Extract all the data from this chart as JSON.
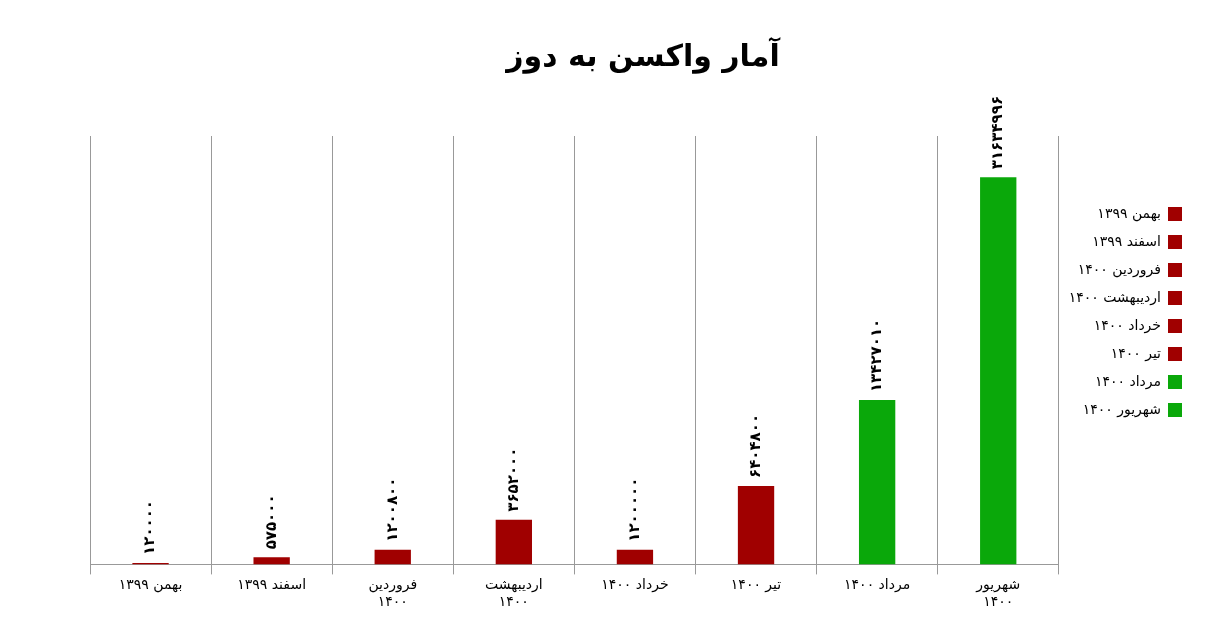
{
  "chart_data": {
    "type": "bar",
    "title": "آمار واکسن به دوز",
    "categories": [
      "بهمن ۱۳۹۹",
      "اسفند ۱۳۹۹",
      "فروردین ۱۴۰۰",
      "اردیبهشت ۱۴۰۰",
      "خرداد ۱۴۰۰",
      "تیر ۱۴۰۰",
      "مرداد ۱۴۰۰",
      "شهریور ۱۴۰۰"
    ],
    "series": [
      {
        "name": "بهمن ۱۳۹۹",
        "color": "#a00000",
        "values": [
          120000,
          null,
          null,
          null,
          null,
          null,
          null,
          null
        ],
        "value_labels": [
          "۱۲۰۰۰۰",
          null,
          null,
          null,
          null,
          null,
          null,
          null
        ]
      },
      {
        "name": "اسفند ۱۳۹۹",
        "color": "#a00000",
        "values": [
          null,
          575000,
          null,
          null,
          null,
          null,
          null,
          null
        ],
        "value_labels": [
          null,
          "۵۷۵۰۰۰",
          null,
          null,
          null,
          null,
          null,
          null
        ]
      },
      {
        "name": "فروردین ۱۴۰۰",
        "color": "#a00000",
        "values": [
          null,
          null,
          1200800,
          null,
          null,
          null,
          null,
          null
        ],
        "value_labels": [
          null,
          null,
          "۱۲۰۰۸۰۰",
          null,
          null,
          null,
          null,
          null
        ]
      },
      {
        "name": "اردیبهشت ۱۴۰۰",
        "color": "#a00000",
        "values": [
          null,
          null,
          null,
          3652000,
          null,
          null,
          null,
          null
        ],
        "value_labels": [
          null,
          null,
          null,
          "۳۶۵۲۰۰۰",
          null,
          null,
          null,
          null
        ]
      },
      {
        "name": "خرداد ۱۴۰۰",
        "color": "#a00000",
        "values": [
          null,
          null,
          null,
          null,
          1200000,
          null,
          null,
          null
        ],
        "value_labels": [
          null,
          null,
          null,
          null,
          "۱۲۰۰۰۰۰",
          null,
          null,
          null
        ]
      },
      {
        "name": "تیر ۱۴۰۰",
        "color": "#a00000",
        "values": [
          null,
          null,
          null,
          null,
          null,
          6404800,
          null,
          null
        ],
        "value_labels": [
          null,
          null,
          null,
          null,
          null,
          "۶۴۰۴۸۰۰",
          null,
          null
        ]
      },
      {
        "name": "مرداد ۱۴۰۰",
        "color": "#0aa80a",
        "values": [
          null,
          null,
          null,
          null,
          null,
          null,
          13427010,
          null
        ],
        "value_labels": [
          null,
          null,
          null,
          null,
          null,
          null,
          "۱۳۴۲۷۰۱۰",
          null
        ]
      },
      {
        "name": "شهریور ۱۴۰۰",
        "color": "#0aa80a",
        "values": [
          null,
          null,
          null,
          null,
          null,
          null,
          null,
          31634996
        ],
        "value_labels": [
          null,
          null,
          null,
          null,
          null,
          null,
          null,
          "۳۱۶۳۴۹۹۶"
        ]
      }
    ],
    "grid": "x",
    "legend": "right",
    "tick_labels": "x"
  }
}
